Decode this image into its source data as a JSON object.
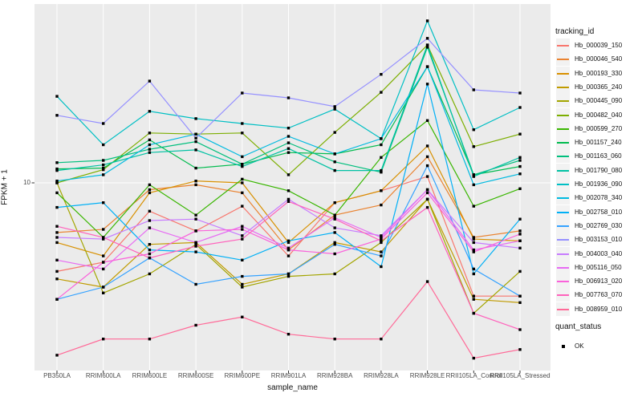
{
  "chart_data": {
    "type": "line",
    "title": "",
    "xlabel": "sample_name",
    "ylabel": "FPKM + 1",
    "y_scale": "log10",
    "y_tick_labels": [
      "10"
    ],
    "grid": "on",
    "legend_position": "right",
    "legend_title": "tracking_id",
    "marker": "filled-black-square",
    "categories": [
      "PB350LA",
      "RRIM600LA",
      "RRIM600LE",
      "RRIM600SE",
      "RRIM600PE",
      "RRIM901LA",
      "RRIM928BA",
      "RRIM928LA",
      "RRIM928LE",
      "RRII105LA_Control",
      "RRII105LA_Stressed"
    ],
    "series": [
      {
        "name": "Hb_000039_150",
        "color": "#F8766D",
        "values": [
          3.9,
          4.3,
          7.4,
          6.0,
          7.8,
          4.6,
          8.1,
          9.2,
          10.7,
          3.0,
          3.0
        ]
      },
      {
        "name": "Hb_000046_540",
        "color": "#EA8331",
        "values": [
          5.9,
          6.1,
          9.3,
          9.8,
          9.0,
          4.9,
          7.1,
          7.9,
          13.2,
          5.6,
          6.0
        ]
      },
      {
        "name": "Hb_000193_330",
        "color": "#D89000",
        "values": [
          5.3,
          4.6,
          9.0,
          10.2,
          10.0,
          5.3,
          8.1,
          9.2,
          14.8,
          5.5,
          5.4
        ]
      },
      {
        "name": "Hb_000365_240",
        "color": "#C09B00",
        "values": [
          3.6,
          3.3,
          5.2,
          5.3,
          3.4,
          3.8,
          5.3,
          4.8,
          8.4,
          2.9,
          2.8
        ]
      },
      {
        "name": "Hb_000445_090",
        "color": "#A3A500",
        "values": [
          10.0,
          3.1,
          3.8,
          5.2,
          3.3,
          3.7,
          3.8,
          5.3,
          8.4,
          2.5,
          3.9
        ]
      },
      {
        "name": "Hb_000482_040",
        "color": "#7CAE00",
        "values": [
          10.0,
          11.5,
          17.0,
          16.8,
          17.0,
          10.9,
          17.1,
          26.2,
          43.3,
          14.7,
          16.8
        ]
      },
      {
        "name": "Hb_000599_270",
        "color": "#39B600",
        "values": [
          9.0,
          5.6,
          9.8,
          7.1,
          10.4,
          9.2,
          7.1,
          13.1,
          19.4,
          7.8,
          9.4
        ]
      },
      {
        "name": "Hb_001157_240",
        "color": "#00BB4E",
        "values": [
          11.6,
          11.7,
          15.8,
          11.7,
          12.2,
          13.8,
          13.6,
          15.0,
          34.4,
          10.9,
          11.9
        ]
      },
      {
        "name": "Hb_001163_060",
        "color": "#00BF7D",
        "values": [
          12.4,
          12.7,
          14.3,
          15.5,
          12.2,
          15.3,
          12.5,
          11.2,
          42.3,
          10.9,
          12.7
        ]
      },
      {
        "name": "Hb_001790_080",
        "color": "#00C1A3",
        "values": [
          11.4,
          12.1,
          13.8,
          14.2,
          11.9,
          14.4,
          11.4,
          11.4,
          43.3,
          10.7,
          13.1
        ]
      },
      {
        "name": "Hb_001936_090",
        "color": "#00BFC4",
        "values": [
          25.1,
          15.0,
          21.4,
          19.8,
          18.8,
          17.9,
          21.9,
          16.0,
          56.0,
          17.6,
          22.3
        ]
      },
      {
        "name": "Hb_002078_340",
        "color": "#00BAE0",
        "values": [
          10.2,
          10.9,
          15.0,
          16.8,
          13.2,
          16.4,
          13.6,
          16.0,
          34.4,
          9.8,
          11.0
        ]
      },
      {
        "name": "Hb_002758_010",
        "color": "#00B0F6",
        "values": [
          7.7,
          8.1,
          4.9,
          4.8,
          4.4,
          5.4,
          5.9,
          4.1,
          28.6,
          3.8,
          6.8
        ]
      },
      {
        "name": "Hb_002769_030",
        "color": "#35A2FF",
        "values": [
          2.9,
          3.3,
          4.5,
          3.4,
          3.7,
          3.8,
          5.2,
          4.6,
          12.0,
          4.0,
          3.0
        ]
      },
      {
        "name": "Hb_003153_010",
        "color": "#9590FF",
        "values": [
          20.5,
          18.8,
          29.5,
          16.1,
          26.0,
          24.7,
          22.5,
          31.7,
          46.5,
          26.9,
          26.0
        ]
      },
      {
        "name": "Hb_004003_040",
        "color": "#C77CFF",
        "values": [
          5.6,
          5.5,
          6.7,
          6.8,
          5.7,
          8.4,
          6.2,
          5.7,
          9.3,
          5.3,
          5.0
        ]
      },
      {
        "name": "Hb_005116_050",
        "color": "#E76BF3",
        "values": [
          4.4,
          4.0,
          6.2,
          5.3,
          6.3,
          5.0,
          6.9,
          5.6,
          9.3,
          4.9,
          5.4
        ]
      },
      {
        "name": "Hb_006913_020",
        "color": "#FA62DB",
        "values": [
          2.9,
          4.3,
          4.7,
          6.0,
          6.1,
          4.9,
          4.7,
          5.5,
          9.0,
          4.8,
          5.8
        ]
      },
      {
        "name": "Hb_007763_070",
        "color": "#FF62BC",
        "values": [
          6.3,
          5.6,
          4.5,
          5.1,
          5.5,
          8.2,
          6.8,
          5.4,
          7.7,
          2.5,
          2.1
        ]
      },
      {
        "name": "Hb_008959_010",
        "color": "#FF6A98",
        "values": [
          1.6,
          1.9,
          1.9,
          2.2,
          2.4,
          2.0,
          1.9,
          1.9,
          3.5,
          1.55,
          1.7
        ]
      }
    ],
    "quant_status": {
      "title": "quant_status",
      "values": [
        "OK"
      ]
    },
    "colors": {
      "panel_background": "#EBEBEB",
      "gridline": "#FFFFFF",
      "marker": "#000000",
      "axis_text": "#4d4d4d"
    }
  }
}
